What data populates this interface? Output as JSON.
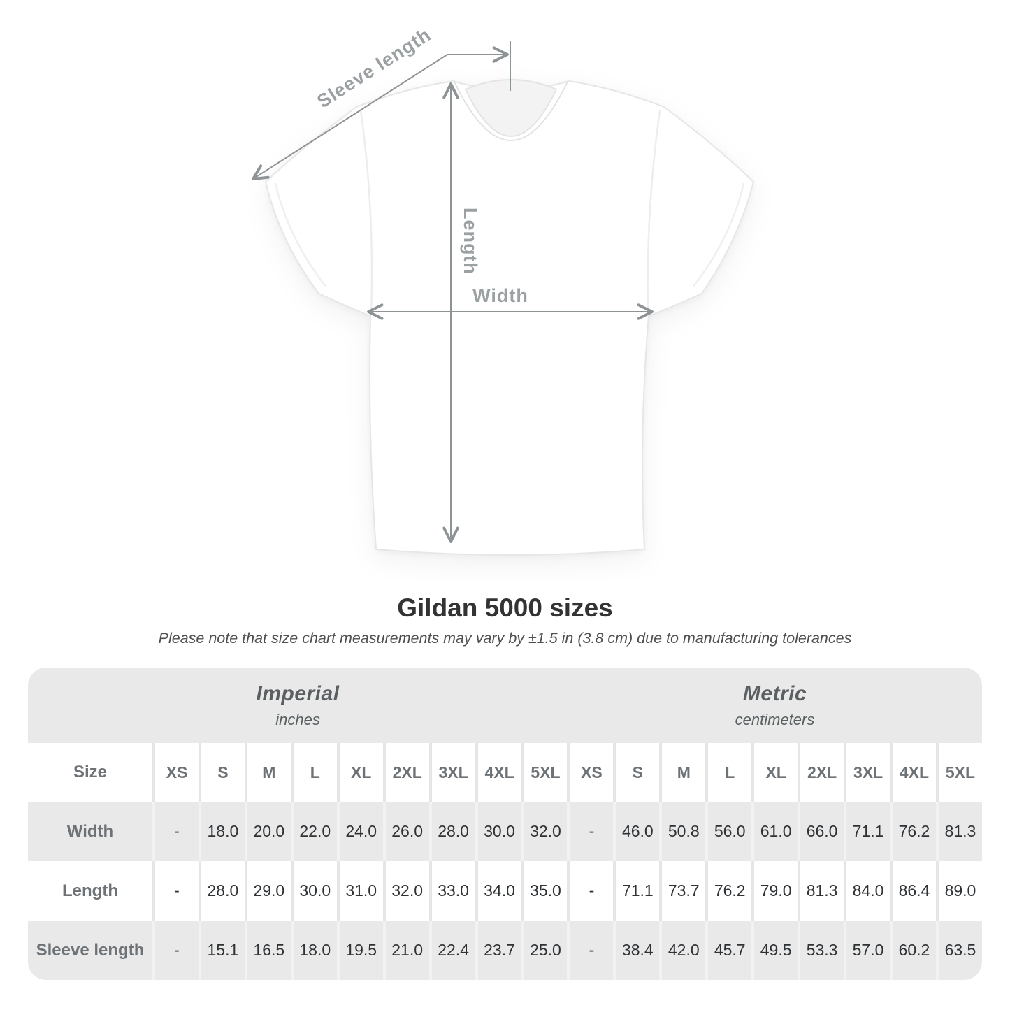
{
  "diagram": {
    "sleeve_length_label": "Sleeve length",
    "length_label": "Length",
    "width_label": "Width"
  },
  "heading": {
    "title": "Gildan 5000 sizes",
    "subtitle": "Please note that size chart measurements may vary by ±1.5 in (3.8 cm) due to manufacturing tolerances"
  },
  "table": {
    "corner_label": "Size",
    "groups": [
      {
        "name": "Imperial",
        "unit": "inches"
      },
      {
        "name": "Metric",
        "unit": "centimeters"
      }
    ],
    "sizes": [
      "XS",
      "S",
      "M",
      "L",
      "XL",
      "2XL",
      "3XL",
      "4XL",
      "5XL"
    ],
    "rows": [
      {
        "label": "Width",
        "imperial": [
          "-",
          "18.0",
          "20.0",
          "22.0",
          "24.0",
          "26.0",
          "28.0",
          "30.0",
          "32.0"
        ],
        "metric": [
          "-",
          "46.0",
          "50.8",
          "56.0",
          "61.0",
          "66.0",
          "71.1",
          "76.2",
          "81.3"
        ]
      },
      {
        "label": "Length",
        "imperial": [
          "-",
          "28.0",
          "29.0",
          "30.0",
          "31.0",
          "32.0",
          "33.0",
          "34.0",
          "35.0"
        ],
        "metric": [
          "-",
          "71.1",
          "73.7",
          "76.2",
          "79.0",
          "81.3",
          "84.0",
          "86.4",
          "89.0"
        ]
      },
      {
        "label": "Sleeve length",
        "imperial": [
          "-",
          "15.1",
          "16.5",
          "18.0",
          "19.5",
          "21.0",
          "22.4",
          "23.7",
          "25.0"
        ],
        "metric": [
          "-",
          "38.4",
          "42.0",
          "45.7",
          "49.5",
          "53.3",
          "57.0",
          "60.2",
          "63.5"
        ]
      }
    ]
  },
  "colors": {
    "table_band_gray": "#e9e9e9",
    "annotation_gray": "#9ba0a3",
    "line_gray": "#8e9396"
  }
}
